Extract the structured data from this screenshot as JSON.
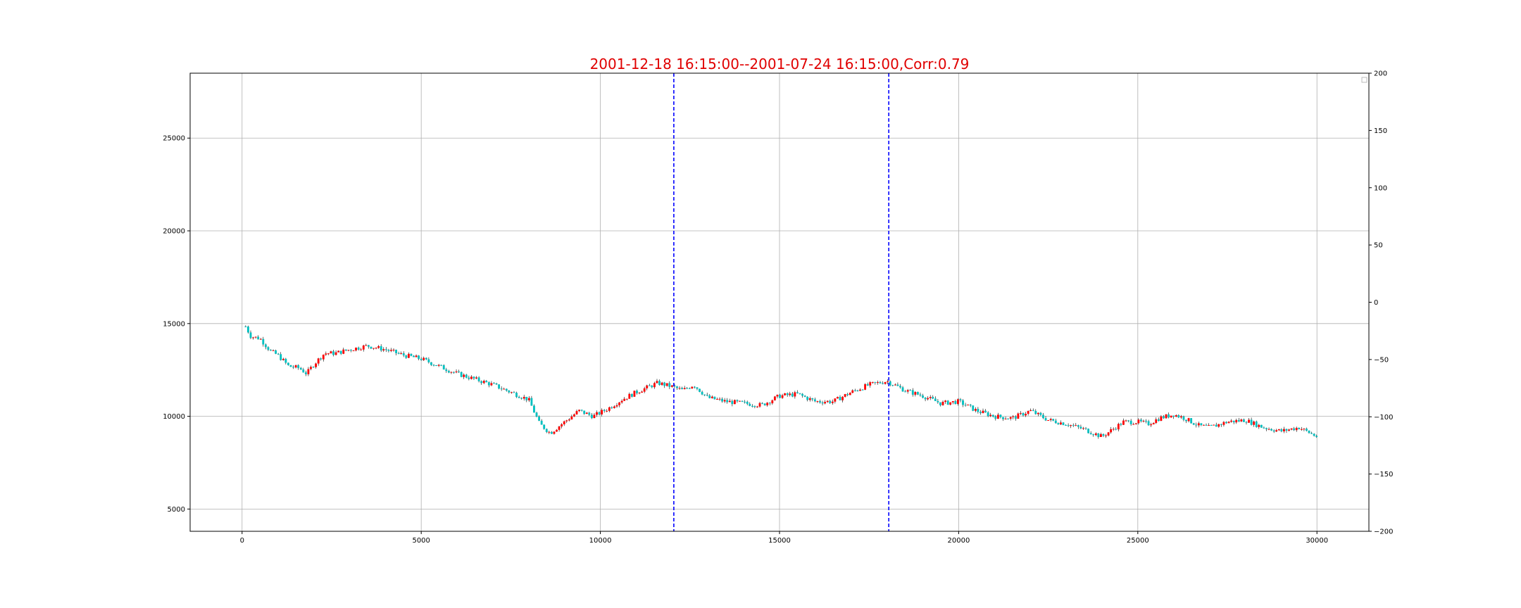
{
  "chart_data": {
    "type": "candlestick",
    "title": "2001-12-18 16:15:00--2001-07-24 16:15:00,Corr:0.79",
    "xlabel": "",
    "ylabel": "",
    "xlim": [
      -1450,
      31450
    ],
    "ylim": [
      3800,
      28500
    ],
    "y2lim": [
      -200,
      200
    ],
    "x_ticks": [
      0,
      5000,
      10000,
      15000,
      20000,
      25000,
      30000
    ],
    "x_tick_labels": [
      "0",
      "5000",
      "10000",
      "15000",
      "20000",
      "25000",
      "30000"
    ],
    "y_ticks": [
      5000,
      10000,
      15000,
      20000,
      25000
    ],
    "y_tick_labels": [
      "5000",
      "10000",
      "15000",
      "20000",
      "25000"
    ],
    "y2_ticks": [
      200,
      150,
      100,
      50,
      0,
      -50,
      -100,
      -150,
      -200
    ],
    "y2_tick_labels": [
      "200",
      "150",
      "100",
      "50",
      "0",
      "−50",
      "−100",
      "−150",
      "−200"
    ],
    "grid": true,
    "legend": "top-right",
    "vlines": [
      12050,
      18050
    ],
    "price_path": {
      "x": [
        0,
        250,
        500,
        800,
        1000,
        1300,
        1600,
        1800,
        2000,
        2300,
        2600,
        3000,
        3500,
        4000,
        4500,
        5000,
        5500,
        6000,
        6500,
        7000,
        7500,
        8000,
        8300,
        8600,
        9000,
        9400,
        9800,
        10200,
        10600,
        11000,
        11600,
        12000,
        12300,
        12600,
        13000,
        13500,
        14000,
        14500,
        15000,
        15500,
        16000,
        16500,
        17000,
        17500,
        18000,
        18500,
        19000,
        19500,
        20000,
        20500,
        21000,
        21500,
        22000,
        22500,
        23000,
        23500,
        24000,
        24300,
        24600,
        25000,
        25300,
        25600,
        26000,
        26300,
        26700,
        27000,
        27500,
        28000,
        28500,
        29000,
        29500,
        30000
      ],
      "close": [
        15200,
        14300,
        14200,
        13500,
        13300,
        12700,
        12600,
        12300,
        12800,
        13400,
        13400,
        13600,
        13800,
        13600,
        13300,
        13100,
        12700,
        12300,
        12000,
        11700,
        11300,
        10900,
        9600,
        9100,
        9700,
        10300,
        10000,
        10400,
        10900,
        11300,
        11800,
        11600,
        11400,
        11700,
        11000,
        10800,
        10700,
        10600,
        11100,
        11200,
        10800,
        10800,
        11300,
        11700,
        11900,
        11400,
        11100,
        10700,
        10800,
        10300,
        10000,
        9900,
        10300,
        9800,
        9600,
        9300,
        8900,
        9300,
        9700,
        9700,
        9600,
        9900,
        10100,
        9900,
        9500,
        9400,
        9700,
        9800,
        9400,
        9200,
        9400,
        8900
      ]
    },
    "bar_spacing": 70,
    "up_color": "#ff0000",
    "down_color": "#00c0c0",
    "wick_color": "#000000",
    "vline_color": "#0000ff",
    "title_color": "#e00000"
  }
}
